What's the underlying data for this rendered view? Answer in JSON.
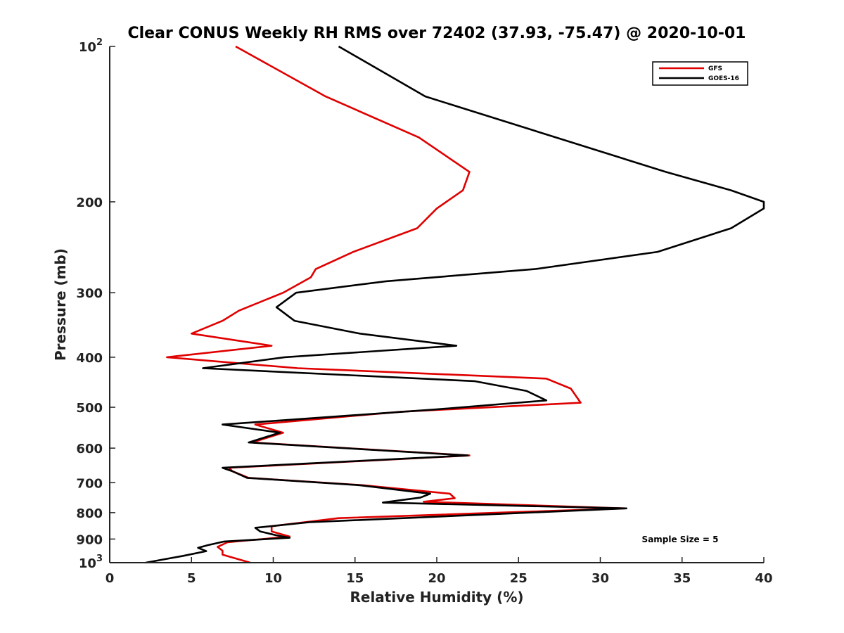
{
  "chart_data": {
    "type": "line",
    "title": "Clear CONUS Weekly RH RMS over 72402 (37.93, -75.47) @ 2020-10-01",
    "xlabel": "Relative Humidity (%)",
    "ylabel": "Pressure (mb)",
    "xlim": [
      0,
      40
    ],
    "ylim": [
      100,
      1000
    ],
    "yscale": "log",
    "yreversed": true,
    "x_ticks": [
      0,
      5,
      10,
      15,
      20,
      25,
      30,
      35,
      40
    ],
    "x_tick_labels": [
      "0",
      "5",
      "10",
      "15",
      "20",
      "25",
      "30",
      "35",
      "40"
    ],
    "y_ticks": [
      100,
      200,
      300,
      400,
      500,
      600,
      700,
      800,
      900,
      1000
    ],
    "y_tick_labels": [
      {
        "base": "10",
        "exp": "2"
      },
      {
        "text": "200"
      },
      {
        "text": "300"
      },
      {
        "text": "400"
      },
      {
        "text": "500"
      },
      {
        "text": "600"
      },
      {
        "text": "700"
      },
      {
        "text": "800"
      },
      {
        "text": "900"
      },
      {
        "base": "10",
        "exp": "3"
      }
    ],
    "legend_position": "top-right",
    "annotation": "Sample Size = 5",
    "series": [
      {
        "name": "GFS",
        "color": "#e00000",
        "points": [
          [
            7.7,
            100
          ],
          [
            13.2,
            125
          ],
          [
            18.9,
            150
          ],
          [
            22.0,
            175
          ],
          [
            21.6,
            190
          ],
          [
            20.0,
            206
          ],
          [
            18.8,
            225
          ],
          [
            14.9,
            250
          ],
          [
            12.6,
            270
          ],
          [
            12.3,
            280
          ],
          [
            10.6,
            300
          ],
          [
            7.9,
            325
          ],
          [
            6.9,
            340
          ],
          [
            5.0,
            360
          ],
          [
            9.9,
            380
          ],
          [
            3.5,
            400
          ],
          [
            11.5,
            420
          ],
          [
            26.7,
            440
          ],
          [
            28.2,
            460
          ],
          [
            28.8,
            490
          ],
          [
            17.8,
            510
          ],
          [
            8.9,
            540
          ],
          [
            10.6,
            560
          ],
          [
            8.7,
            585
          ],
          [
            22.0,
            620
          ],
          [
            7.3,
            655
          ],
          [
            7.5,
            665
          ],
          [
            8.5,
            685
          ],
          [
            15.5,
            708
          ],
          [
            20.8,
            735
          ],
          [
            21.1,
            750
          ],
          [
            19.2,
            762
          ],
          [
            31.5,
            785
          ],
          [
            14.0,
            820
          ],
          [
            9.9,
            850
          ],
          [
            9.9,
            870
          ],
          [
            11.0,
            890
          ],
          [
            7.2,
            913
          ],
          [
            6.6,
            932
          ],
          [
            6.9,
            948
          ],
          [
            6.9,
            965
          ],
          [
            8.6,
            1000
          ]
        ]
      },
      {
        "name": "GOES-16",
        "color": "#000000",
        "points": [
          [
            14.0,
            100
          ],
          [
            19.3,
            125
          ],
          [
            34.0,
            175
          ],
          [
            38.0,
            190
          ],
          [
            40.0,
            200
          ],
          [
            40.0,
            206
          ],
          [
            38.0,
            225
          ],
          [
            33.5,
            250
          ],
          [
            26.0,
            270
          ],
          [
            16.9,
            285
          ],
          [
            11.4,
            300
          ],
          [
            10.2,
            320
          ],
          [
            11.3,
            340
          ],
          [
            15.3,
            360
          ],
          [
            21.2,
            380
          ],
          [
            10.7,
            400
          ],
          [
            5.7,
            420
          ],
          [
            22.3,
            445
          ],
          [
            25.5,
            465
          ],
          [
            26.7,
            485
          ],
          [
            19.9,
            505
          ],
          [
            6.9,
            540
          ],
          [
            10.4,
            560
          ],
          [
            8.5,
            585
          ],
          [
            21.9,
            620
          ],
          [
            6.9,
            655
          ],
          [
            7.5,
            665
          ],
          [
            8.4,
            685
          ],
          [
            15.3,
            708
          ],
          [
            19.6,
            735
          ],
          [
            19.0,
            748
          ],
          [
            16.7,
            765
          ],
          [
            31.6,
            785
          ],
          [
            12.2,
            835
          ],
          [
            8.9,
            856
          ],
          [
            9.2,
            870
          ],
          [
            10.2,
            885
          ],
          [
            11.0,
            895
          ],
          [
            7.0,
            910
          ],
          [
            6.0,
            925
          ],
          [
            5.4,
            936
          ],
          [
            5.9,
            950
          ],
          [
            4.5,
            970
          ],
          [
            2.2,
            1000
          ]
        ]
      }
    ]
  }
}
